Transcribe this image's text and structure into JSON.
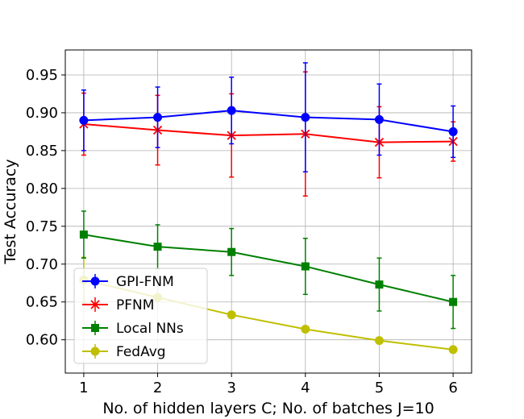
{
  "chart_data": {
    "type": "line",
    "title": "",
    "xlabel": "No. of hidden layers C; No. of batches J=10",
    "ylabel": "Test Accuracy",
    "x": [
      1,
      2,
      3,
      4,
      5,
      6
    ],
    "xticks": [
      "1",
      "2",
      "3",
      "4",
      "5",
      "6"
    ],
    "xlim": [
      0.75,
      6.25
    ],
    "yticks": [
      "0.60",
      "0.65",
      "0.70",
      "0.75",
      "0.80",
      "0.85",
      "0.90",
      "0.95"
    ],
    "ylim": [
      0.556,
      0.983
    ],
    "grid": true,
    "legend_position": "lower-left",
    "series": [
      {
        "name": "GPI-FNM",
        "color": "#0000ff",
        "marker": "circle",
        "values": [
          0.89,
          0.894,
          0.903,
          0.894,
          0.891,
          0.875
        ],
        "errors": [
          0.04,
          0.04,
          0.044,
          0.072,
          0.047,
          0.034
        ]
      },
      {
        "name": "PFNM",
        "color": "#ff0000",
        "marker": "x",
        "values": [
          0.885,
          0.877,
          0.87,
          0.872,
          0.861,
          0.862
        ],
        "errors": [
          0.041,
          0.046,
          0.055,
          0.082,
          0.047,
          0.026
        ]
      },
      {
        "name": "Local NNs",
        "color": "#008000",
        "marker": "square",
        "values": [
          0.739,
          0.723,
          0.716,
          0.697,
          0.673,
          0.65
        ],
        "errors": [
          0.031,
          0.029,
          0.031,
          0.037,
          0.035,
          0.035
        ]
      },
      {
        "name": "FedAvg",
        "color": "#bfbf00",
        "marker": "circle",
        "values": [
          0.679,
          0.656,
          0.633,
          0.614,
          0.599,
          0.587
        ],
        "errors": [
          0.03,
          0.0,
          0.0,
          0.0,
          0.0,
          0.0
        ]
      }
    ]
  }
}
